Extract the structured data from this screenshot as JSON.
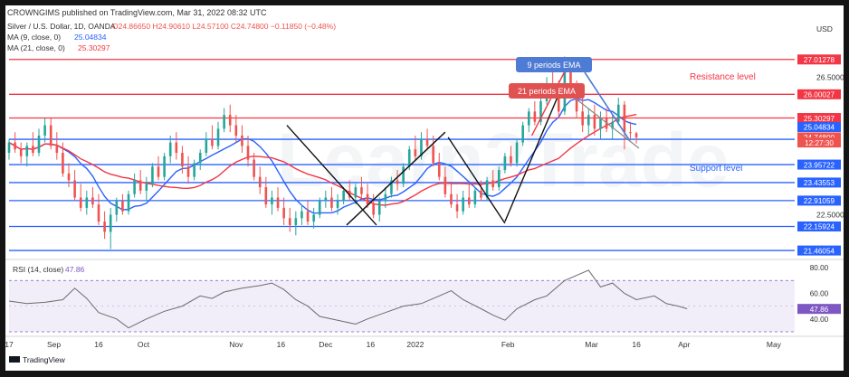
{
  "header": {
    "publisher": "CROWNGIMS published on TradingView.com, Mar 31, 2022 08:32 UTC"
  },
  "legend": {
    "symbol": "Silver / U.S. Dollar, 1D, OANDA",
    "ohlc": "O24.86650  H24.90610  L24.57100  C24.74800  −0.11850 (−0.48%)",
    "ma9_label": "MA (9, close, 0)",
    "ma9_value": "25.04834",
    "ma21_label": "MA (21, close, 0)",
    "ma21_value": "25.30297"
  },
  "footer": {
    "brand": "TradingView"
  },
  "colors": {
    "up": "#26a69a",
    "down": "#ef5350",
    "ma9": "#2962ff",
    "ma21": "#f23645",
    "resistance": "#f23645",
    "support": "#2962ff",
    "rsi": "#6b6b6b",
    "rsi_band": "#7e57c2"
  },
  "chart_data": {
    "type": "candlestick",
    "currency": "USD",
    "ylim": [
      21.2,
      27.9
    ],
    "y_scale_ticks": [
      "26.50000",
      "22.50000"
    ],
    "x_ticks": [
      "17",
      "Sep",
      "16",
      "Oct",
      "Nov",
      "16",
      "Dec",
      "16",
      "2022",
      "Feb",
      "Mar",
      "16",
      "Apr",
      "May"
    ],
    "x_tick_days": [
      0,
      15,
      30,
      45,
      76,
      91,
      106,
      121,
      136,
      167,
      195,
      210,
      226,
      256
    ],
    "price_levels": [
      {
        "value": 27.01278,
        "label": "27.01278",
        "kind": "resistance"
      },
      {
        "value": 26.00027,
        "label": "26.00027",
        "kind": "resistance"
      },
      {
        "value": 25.31112,
        "label": "25.31112",
        "kind": "resistance"
      },
      {
        "value": 24.69318,
        "label": "24.69318",
        "kind": "support"
      },
      {
        "value": 23.95722,
        "label": "23.95722",
        "kind": "support"
      },
      {
        "value": 23.43553,
        "label": "23.43553",
        "kind": "support"
      },
      {
        "value": 22.91059,
        "label": "22.91059",
        "kind": "support"
      },
      {
        "value": 22.15924,
        "label": "22.15924",
        "kind": "support"
      },
      {
        "value": 21.46054,
        "label": "21.46054",
        "kind": "support"
      }
    ],
    "price_tags": [
      {
        "value": 25.30297,
        "label": "25.30297",
        "kind": "ma21"
      },
      {
        "value": 25.04834,
        "label": "25.04834",
        "kind": "ma9"
      },
      {
        "value": 24.748,
        "label": "24.74800",
        "kind": "last"
      },
      {
        "value": 24.6,
        "label": "12:27:30",
        "kind": "countdown"
      }
    ],
    "annotations": {
      "resistance_text": "Resistance level",
      "support_text": "Support level",
      "ema9_callout": "9 periods EMA",
      "ema21_callout": "21 periods EMA",
      "trendlines": [
        [
          [
            93,
            25.1
          ],
          [
            123,
            22.2
          ]
        ],
        [
          [
            113,
            22.2
          ],
          [
            146,
            24.9
          ]
        ],
        [
          [
            147,
            24.75
          ],
          [
            166,
            22.25
          ]
        ],
        [
          [
            166,
            22.3
          ],
          [
            184,
            26.0
          ]
        ]
      ],
      "arrow": [
        [
          175,
          24.8
        ],
        [
          188,
          27.0
        ]
      ]
    },
    "rsi": {
      "label": "RSI (14, close)",
      "value_label": "47.86",
      "ylim": [
        30,
        85
      ],
      "ticks": [
        "80.00",
        "60.00",
        "40.00"
      ],
      "tick_values": [
        80,
        60,
        40
      ],
      "band": [
        70,
        30
      ],
      "current": 47.86,
      "series": [
        [
          0,
          54
        ],
        [
          6,
          52
        ],
        [
          12,
          53
        ],
        [
          18,
          55
        ],
        [
          22,
          64
        ],
        [
          26,
          56
        ],
        [
          30,
          45
        ],
        [
          36,
          40
        ],
        [
          40,
          33
        ],
        [
          46,
          40
        ],
        [
          52,
          46
        ],
        [
          58,
          50
        ],
        [
          64,
          58
        ],
        [
          68,
          56
        ],
        [
          72,
          61
        ],
        [
          78,
          64
        ],
        [
          84,
          66
        ],
        [
          88,
          68
        ],
        [
          92,
          63
        ],
        [
          96,
          55
        ],
        [
          100,
          50
        ],
        [
          104,
          42
        ],
        [
          110,
          39
        ],
        [
          116,
          36
        ],
        [
          120,
          40
        ],
        [
          126,
          45
        ],
        [
          132,
          50
        ],
        [
          138,
          52
        ],
        [
          144,
          58
        ],
        [
          148,
          62
        ],
        [
          152,
          55
        ],
        [
          158,
          48
        ],
        [
          162,
          43
        ],
        [
          166,
          39
        ],
        [
          170,
          48
        ],
        [
          176,
          55
        ],
        [
          180,
          58
        ],
        [
          186,
          70
        ],
        [
          190,
          74
        ],
        [
          194,
          78
        ],
        [
          198,
          65
        ],
        [
          202,
          68
        ],
        [
          206,
          60
        ],
        [
          210,
          55
        ],
        [
          216,
          58
        ],
        [
          220,
          52
        ],
        [
          224,
          50
        ],
        [
          227,
          48
        ]
      ]
    },
    "candles": [
      [
        0,
        24.3,
        24.7,
        24.1,
        24.6
      ],
      [
        2,
        24.6,
        24.9,
        24.3,
        24.4
      ],
      [
        4,
        24.4,
        24.6,
        24.0,
        24.2
      ],
      [
        6,
        24.2,
        24.6,
        23.9,
        24.5
      ],
      [
        8,
        24.5,
        24.9,
        24.2,
        24.3
      ],
      [
        10,
        24.3,
        25.0,
        24.2,
        24.8
      ],
      [
        12,
        24.8,
        25.3,
        24.6,
        25.1
      ],
      [
        14,
        25.1,
        25.3,
        24.4,
        24.5
      ],
      [
        16,
        24.5,
        24.9,
        24.1,
        24.3
      ],
      [
        18,
        24.3,
        24.6,
        23.6,
        23.7
      ],
      [
        20,
        23.7,
        24.0,
        23.3,
        23.5
      ],
      [
        22,
        23.5,
        23.8,
        22.9,
        23.0
      ],
      [
        24,
        23.0,
        23.4,
        22.6,
        22.7
      ],
      [
        26,
        22.7,
        23.2,
        22.5,
        23.0
      ],
      [
        28,
        23.0,
        23.3,
        22.7,
        22.8
      ],
      [
        30,
        22.8,
        23.1,
        22.2,
        22.3
      ],
      [
        32,
        22.3,
        22.6,
        21.8,
        22.0
      ],
      [
        34,
        22.0,
        22.7,
        21.5,
        22.5
      ],
      [
        36,
        22.5,
        23.0,
        22.3,
        22.9
      ],
      [
        38,
        22.9,
        23.1,
        22.5,
        22.6
      ],
      [
        40,
        22.6,
        23.2,
        22.5,
        23.1
      ],
      [
        42,
        23.1,
        23.7,
        23.0,
        23.5
      ],
      [
        44,
        23.5,
        23.8,
        23.1,
        23.2
      ],
      [
        46,
        23.2,
        23.6,
        22.9,
        23.4
      ],
      [
        48,
        23.4,
        24.0,
        23.3,
        23.9
      ],
      [
        50,
        23.9,
        24.2,
        23.5,
        23.6
      ],
      [
        52,
        23.6,
        24.3,
        23.5,
        24.2
      ],
      [
        54,
        24.2,
        24.8,
        24.0,
        24.6
      ],
      [
        56,
        24.6,
        24.9,
        24.1,
        24.3
      ],
      [
        58,
        24.3,
        24.5,
        23.7,
        23.9
      ],
      [
        60,
        23.9,
        24.2,
        23.4,
        23.6
      ],
      [
        62,
        23.6,
        24.1,
        23.5,
        24.0
      ],
      [
        64,
        24.0,
        24.4,
        23.8,
        24.3
      ],
      [
        66,
        24.3,
        24.9,
        24.2,
        24.7
      ],
      [
        68,
        24.7,
        25.1,
        24.4,
        24.5
      ],
      [
        70,
        24.5,
        25.2,
        24.4,
        25.0
      ],
      [
        72,
        25.0,
        25.6,
        24.9,
        25.4
      ],
      [
        74,
        25.4,
        25.7,
        24.9,
        25.1
      ],
      [
        76,
        25.1,
        25.4,
        24.6,
        24.8
      ],
      [
        78,
        24.8,
        25.1,
        24.3,
        24.5
      ],
      [
        80,
        24.5,
        24.8,
        23.9,
        24.1
      ],
      [
        82,
        24.1,
        24.3,
        23.5,
        23.6
      ],
      [
        84,
        23.6,
        23.9,
        23.1,
        23.3
      ],
      [
        86,
        23.3,
        23.6,
        22.7,
        22.8
      ],
      [
        88,
        22.8,
        23.2,
        22.5,
        23.0
      ],
      [
        90,
        23.0,
        23.3,
        22.6,
        22.7
      ],
      [
        92,
        22.7,
        23.0,
        22.2,
        22.4
      ],
      [
        94,
        22.4,
        22.7,
        22.0,
        22.2
      ],
      [
        96,
        22.2,
        22.6,
        21.9,
        22.4
      ],
      [
        98,
        22.4,
        22.8,
        22.2,
        22.6
      ],
      [
        100,
        22.6,
        22.9,
        22.2,
        22.3
      ],
      [
        102,
        22.3,
        22.7,
        22.1,
        22.5
      ],
      [
        104,
        22.5,
        23.0,
        22.4,
        22.9
      ],
      [
        106,
        22.9,
        23.2,
        22.7,
        23.0
      ],
      [
        108,
        23.0,
        23.3,
        22.6,
        22.7
      ],
      [
        110,
        22.7,
        23.1,
        22.5,
        22.9
      ],
      [
        112,
        22.9,
        23.3,
        22.8,
        23.2
      ],
      [
        114,
        23.2,
        23.5,
        22.9,
        23.0
      ],
      [
        116,
        23.0,
        23.4,
        22.8,
        23.3
      ],
      [
        118,
        23.3,
        23.6,
        23.0,
        23.1
      ],
      [
        120,
        23.1,
        23.4,
        22.7,
        22.8
      ],
      [
        122,
        22.8,
        23.1,
        22.4,
        22.5
      ],
      [
        124,
        22.5,
        23.0,
        22.3,
        22.9
      ],
      [
        126,
        22.9,
        23.3,
        22.7,
        23.1
      ],
      [
        128,
        23.1,
        23.6,
        23.0,
        23.5
      ],
      [
        130,
        23.5,
        23.8,
        23.2,
        23.4
      ],
      [
        132,
        23.4,
        24.0,
        23.3,
        23.9
      ],
      [
        134,
        23.9,
        24.5,
        23.8,
        24.4
      ],
      [
        136,
        24.4,
        24.8,
        24.1,
        24.2
      ],
      [
        138,
        24.2,
        24.9,
        24.1,
        24.7
      ],
      [
        140,
        24.7,
        25.0,
        24.4,
        24.5
      ],
      [
        142,
        24.5,
        24.8,
        23.9,
        24.0
      ],
      [
        144,
        24.0,
        24.3,
        23.5,
        23.6
      ],
      [
        146,
        23.6,
        23.9,
        23.0,
        23.1
      ],
      [
        148,
        23.1,
        23.4,
        22.7,
        22.8
      ],
      [
        150,
        22.8,
        23.1,
        22.4,
        22.6
      ],
      [
        152,
        22.6,
        23.2,
        22.5,
        23.0
      ],
      [
        154,
        23.0,
        23.4,
        22.7,
        22.8
      ],
      [
        156,
        22.8,
        23.3,
        22.7,
        23.2
      ],
      [
        158,
        23.2,
        23.5,
        22.9,
        23.0
      ],
      [
        160,
        23.0,
        23.6,
        22.9,
        23.5
      ],
      [
        162,
        23.5,
        23.8,
        23.2,
        23.3
      ],
      [
        164,
        23.3,
        23.9,
        23.2,
        23.8
      ],
      [
        166,
        23.8,
        24.3,
        23.7,
        24.2
      ],
      [
        168,
        24.2,
        24.5,
        23.9,
        24.0
      ],
      [
        170,
        24.0,
        24.7,
        23.9,
        24.6
      ],
      [
        172,
        24.6,
        25.2,
        24.5,
        25.1
      ],
      [
        174,
        25.1,
        25.6,
        24.9,
        25.5
      ],
      [
        176,
        25.5,
        25.8,
        25.1,
        25.2
      ],
      [
        178,
        25.2,
        25.9,
        25.1,
        25.8
      ],
      [
        180,
        25.8,
        26.5,
        25.7,
        26.3
      ],
      [
        182,
        26.3,
        26.7,
        25.9,
        26.0
      ],
      [
        184,
        26.0,
        26.4,
        25.3,
        25.5
      ],
      [
        186,
        25.5,
        27.1,
        25.4,
        26.8
      ],
      [
        188,
        26.8,
        27.0,
        26.0,
        26.2
      ],
      [
        190,
        26.2,
        26.4,
        25.3,
        25.5
      ],
      [
        192,
        25.5,
        25.9,
        24.9,
        25.1
      ],
      [
        194,
        25.1,
        25.6,
        24.8,
        25.4
      ],
      [
        196,
        25.4,
        25.7,
        24.8,
        25.0
      ],
      [
        198,
        25.0,
        25.5,
        24.7,
        25.3
      ],
      [
        200,
        25.3,
        25.6,
        24.9,
        25.0
      ],
      [
        202,
        25.0,
        25.4,
        24.7,
        25.2
      ],
      [
        204,
        25.2,
        25.9,
        25.1,
        25.7
      ],
      [
        206,
        25.7,
        25.8,
        24.4,
        24.9
      ],
      [
        208,
        24.9,
        25.2,
        24.7,
        24.87
      ],
      [
        210,
        24.87,
        24.91,
        24.57,
        24.75
      ]
    ]
  }
}
